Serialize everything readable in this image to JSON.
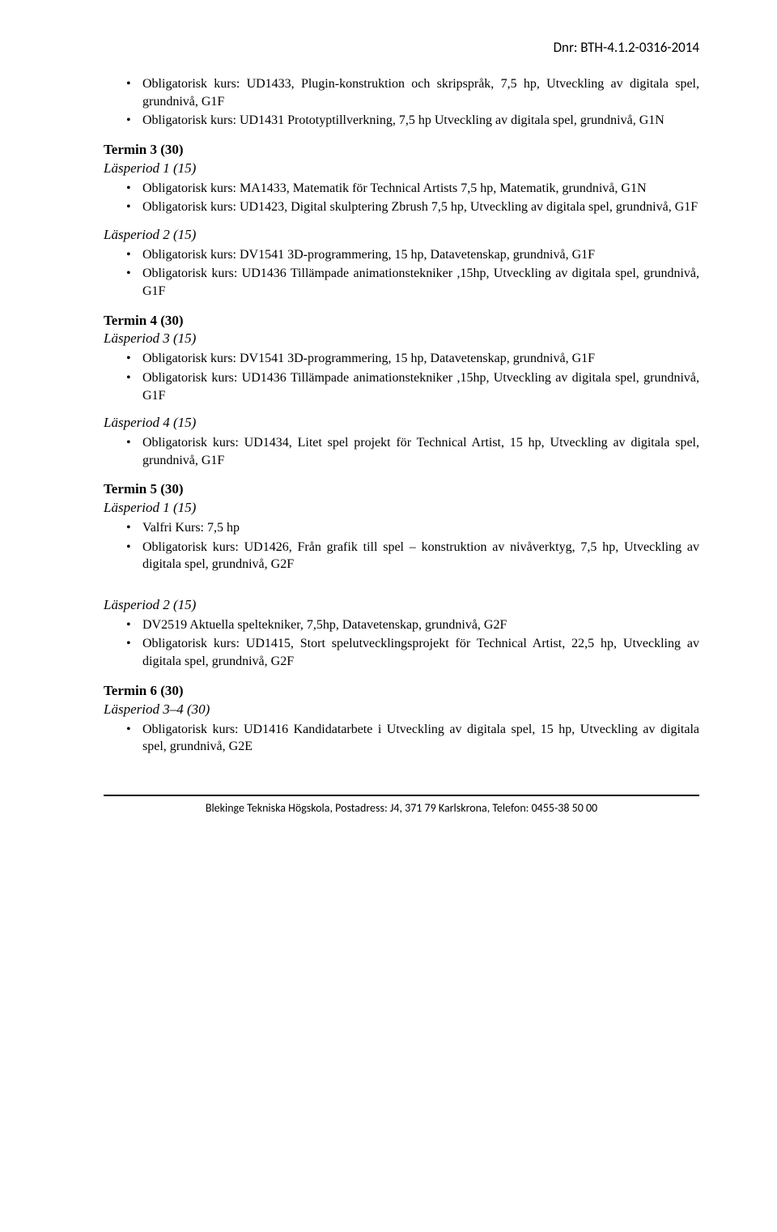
{
  "dnr": "Dnr: BTH-4.1.2-0316-2014",
  "top_list": [
    "Obligatorisk kurs: UD1433, Plugin-konstruktion och skripspråk, 7,5 hp, Utveckling av digitala spel, grundnivå, G1F",
    "Obligatorisk kurs: UD1431 Prototyptillverkning, 7,5 hp Utveckling av digitala spel, grundnivå, G1N"
  ],
  "t3": {
    "heading": "Termin 3 (30)",
    "lp1": {
      "label": "Läsperiod 1 (15)",
      "items": [
        "Obligatorisk kurs: MA1433, Matematik för Technical Artists 7,5 hp, Matematik, grundnivå, G1N",
        "Obligatorisk kurs: UD1423, Digital skulptering Zbrush 7,5 hp, Utveckling av digitala spel, grundnivå, G1F"
      ]
    },
    "lp2": {
      "label": "Läsperiod 2 (15)",
      "items": [
        "Obligatorisk kurs: DV1541 3D-programmering, 15 hp, Datavetenskap, grundnivå, G1F",
        "Obligatorisk kurs: UD1436 Tillämpade animationstekniker ,15hp, Utveckling av digitala spel, grundnivå, G1F"
      ]
    }
  },
  "t4": {
    "heading": "Termin 4 (30)",
    "lp3": {
      "label": "Läsperiod 3 (15)",
      "items": [
        "Obligatorisk kurs: DV1541 3D-programmering, 15 hp, Datavetenskap, grundnivå, G1F",
        "Obligatorisk kurs: UD1436 Tillämpade animationstekniker ,15hp, Utveckling av digitala spel, grundnivå, G1F"
      ]
    },
    "lp4": {
      "label": "Läsperiod 4 (15)",
      "items": [
        "Obligatorisk kurs: UD1434, Litet spel projekt för Technical Artist, 15 hp, Utveckling av digitala spel, grundnivå, G1F"
      ]
    }
  },
  "t5": {
    "heading": "Termin 5 (30)",
    "lp1": {
      "label": "Läsperiod 1 (15)",
      "items": [
        "Valfri Kurs: 7,5 hp",
        "Obligatorisk kurs: UD1426, Från grafik till spel – konstruktion av nivåverktyg, 7,5 hp, Utveckling av digitala spel, grundnivå, G2F"
      ]
    },
    "lp2": {
      "label": "Läsperiod 2 (15)",
      "items": [
        "DV2519 Aktuella speltekniker, 7,5hp, Datavetenskap, grundnivå, G2F",
        "Obligatorisk kurs: UD1415, Stort spelutvecklingsprojekt för Technical Artist, 22,5 hp, Utveckling av digitala spel, grundnivå, G2F"
      ]
    }
  },
  "t6": {
    "heading": "Termin 6 (30)",
    "lp34": {
      "label": "Läsperiod 3–4 (30)",
      "items": [
        "Obligatorisk kurs: UD1416 Kandidatarbete i Utveckling av digitala spel, 15 hp, Utveckling av digitala spel, grundnivå, G2E"
      ]
    }
  },
  "footer": "Blekinge Tekniska Högskola, Postadress: J4, 371 79 Karlskrona, Telefon: 0455-38 50 00"
}
